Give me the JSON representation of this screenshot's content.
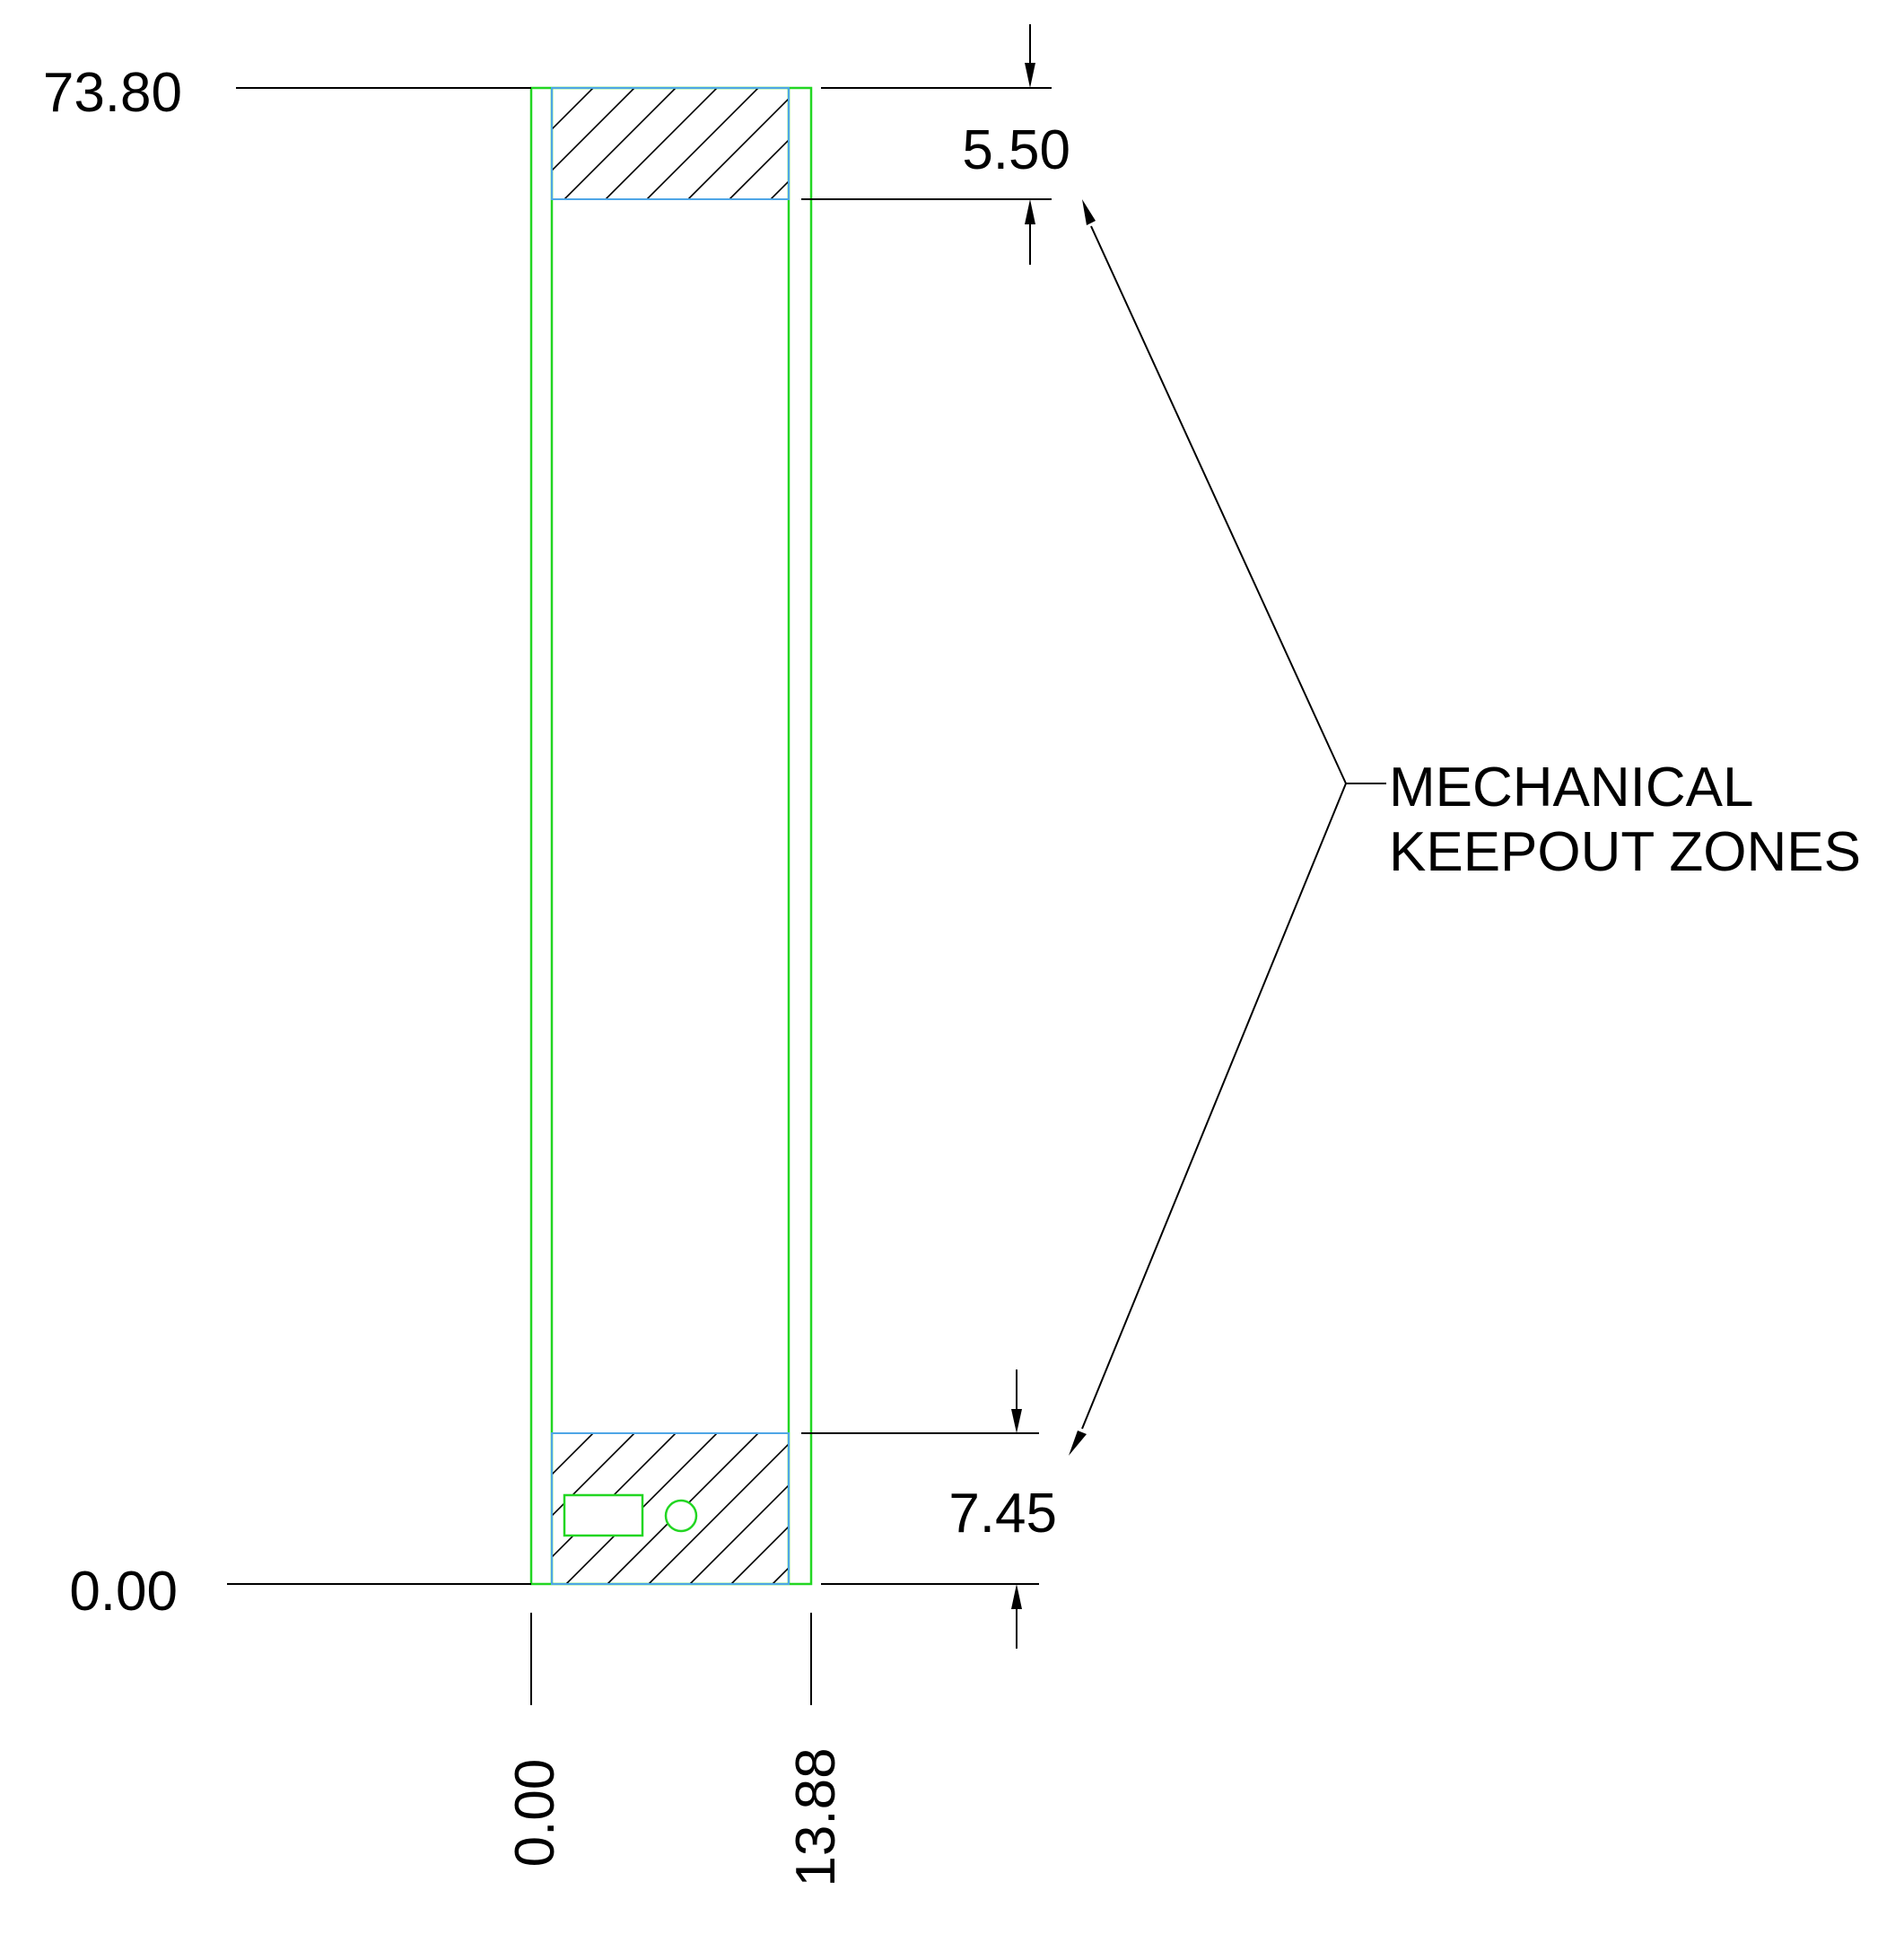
{
  "colors": {
    "outline": "#22d622",
    "keepout": "#4ea6e6",
    "hatch": "#000000",
    "dimension": "#000000"
  },
  "dimensions": {
    "top": "73.80",
    "bottom": "0.00",
    "left": "0.00",
    "right": "13.88",
    "top_zone_height": "5.50",
    "bottom_zone_height": "7.45"
  },
  "callout": {
    "line1": "MECHANICAL",
    "line2": "KEEPOUT ZONES"
  }
}
